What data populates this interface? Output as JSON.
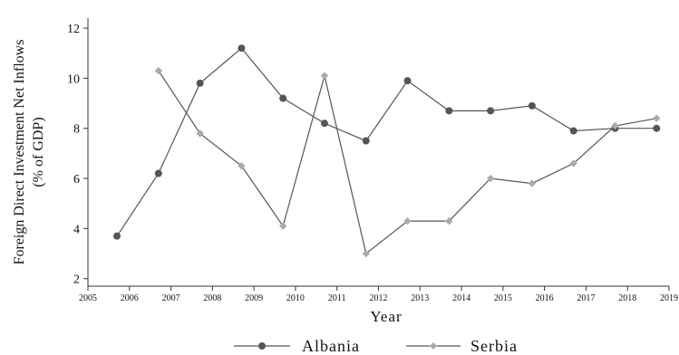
{
  "chart_data": {
    "type": "line",
    "xlabel": "Year",
    "ylabel": [
      "Foreign Direct Investment Net Inflows",
      "(% of GDP)"
    ],
    "xlim": [
      2005,
      2019
    ],
    "ylim": [
      1.7,
      12.4
    ],
    "xticks": [
      2005,
      2006,
      2007,
      2008,
      2009,
      2010,
      2011,
      2012,
      2013,
      2014,
      2015,
      2016,
      2017,
      2018,
      2019
    ],
    "yticks": [
      2,
      4,
      6,
      8,
      10,
      12
    ],
    "grid": false,
    "legend_position": "bottom",
    "series": [
      {
        "name": "Albania",
        "color": "#555555",
        "marker": "circle",
        "x": [
          2005.7,
          2006.7,
          2007.7,
          2008.7,
          2009.7,
          2010.7,
          2011.7,
          2012.7,
          2013.7,
          2014.7,
          2015.7,
          2016.7,
          2017.7,
          2018.7
        ],
        "y": [
          3.7,
          6.2,
          9.8,
          11.2,
          9.2,
          8.2,
          7.5,
          9.9,
          8.7,
          8.7,
          8.9,
          7.9,
          8.0,
          8.0
        ]
      },
      {
        "name": "Serbia",
        "color": "#aaaaaa",
        "marker": "diamond",
        "x": [
          2006.7,
          2007.7,
          2008.7,
          2009.7,
          2010.7,
          2011.7,
          2012.7,
          2013.7,
          2014.7,
          2015.7,
          2016.7,
          2017.7,
          2018.7
        ],
        "y": [
          10.3,
          7.8,
          6.5,
          4.1,
          10.1,
          3.0,
          4.3,
          4.3,
          6.0,
          5.8,
          6.6,
          8.1,
          8.4
        ]
      }
    ]
  }
}
